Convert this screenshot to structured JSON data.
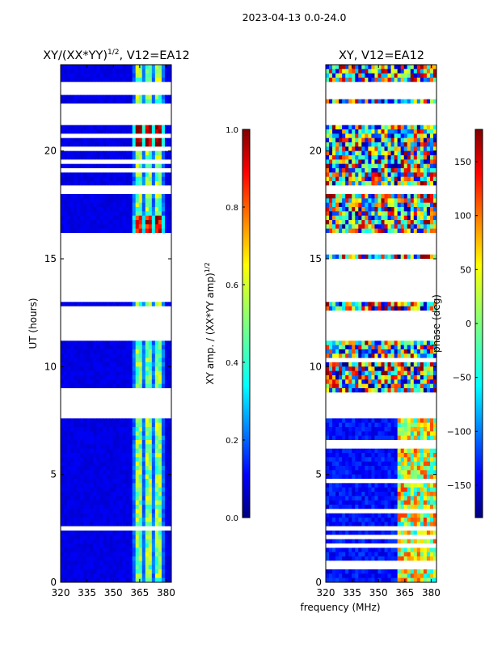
{
  "figure": {
    "suptitle": "2023-04-13 0.0-24.0",
    "shared_xlabel": "frequency (MHz)"
  },
  "chart_data": [
    {
      "type": "heatmap",
      "title": "XY/(XX*YY)^1/2, V12=EA12",
      "title_main": "XY/(XX*YY)",
      "title_sup": "1/2",
      "title_tail": ", V12=EA12",
      "xlabel": "",
      "ylabel": "UT (hours)",
      "xlim": [
        320,
        383
      ],
      "ylim": [
        0,
        24
      ],
      "xticks": [
        320,
        335,
        350,
        365,
        380
      ],
      "yticks": [
        0,
        5,
        10,
        15,
        20
      ],
      "colormap": "jet",
      "colorbar": {
        "label_main": "XY amp. / (XX*YY amp)",
        "label_sup": "1/2",
        "range": [
          0.0,
          1.0
        ],
        "ticks": [
          "0.0",
          "0.2",
          "0.4",
          "0.6",
          "0.8",
          "1.0"
        ],
        "tick_values": [
          0.0,
          0.2,
          0.4,
          0.6,
          0.8,
          1.0
        ]
      },
      "data_gaps_ut_hours": [
        [
          22.6,
          23.1
        ],
        [
          21.3,
          22.2
        ],
        [
          18.1,
          18.4
        ],
        [
          15.3,
          16.2
        ],
        [
          13.0,
          15.0
        ],
        [
          11.2,
          12.6
        ],
        [
          7.6,
          8.8
        ],
        [
          2.4,
          2.6
        ]
      ],
      "background_value": 0.08,
      "features": [
        {
          "freq_range_mhz": [
            360,
            380
          ],
          "ut_range_hours": [
            0,
            24
          ],
          "value_range": [
            0.3,
            0.55
          ],
          "description": "striped high-amplitude channels"
        },
        {
          "freq_range_mhz": [
            360,
            380
          ],
          "ut_range_hours": [
            20,
            21.3
          ],
          "value_range": [
            0.8,
            1.0
          ],
          "description": "saturated channels"
        },
        {
          "freq_range_mhz": [
            360,
            380
          ],
          "ut_range_hours": [
            15.3,
            17
          ],
          "value_range": [
            0.7,
            0.95
          ],
          "description": "saturated channels"
        }
      ]
    },
    {
      "type": "heatmap",
      "title": "XY, V12=EA12",
      "xlabel": "",
      "ylabel": "",
      "xlim": [
        320,
        383
      ],
      "ylim": [
        0,
        24
      ],
      "xticks": [
        320,
        335,
        350,
        365,
        380
      ],
      "yticks": [
        0,
        5,
        10,
        15,
        20
      ],
      "colormap": "jet",
      "colorbar": {
        "label": "phase (deg)",
        "range": [
          -180,
          180
        ],
        "ticks": [
          "150",
          "100",
          "50",
          "0",
          "−50",
          "−100",
          "−150"
        ],
        "tick_values": [
          150,
          100,
          50,
          0,
          -50,
          -100,
          -150
        ]
      },
      "data_gaps_ut_hours": [
        [
          22.6,
          23.1
        ],
        [
          21.3,
          22.2
        ],
        [
          18.1,
          18.4
        ],
        [
          15.3,
          16.2
        ],
        [
          13.0,
          15.0
        ],
        [
          11.2,
          12.6
        ],
        [
          7.6,
          8.8
        ],
        [
          2.4,
          2.6
        ]
      ],
      "features": [
        {
          "freq_range_mhz": [
            320,
            360
          ],
          "ut_range_hours": [
            0,
            7.6
          ],
          "value_range": [
            -150,
            -110
          ],
          "description": "mostly blue low-phase region"
        },
        {
          "freq_range_mhz": [
            360,
            383
          ],
          "ut_range_hours": [
            0,
            7.6
          ],
          "value_range": [
            -60,
            120
          ],
          "description": "mixed phase"
        },
        {
          "freq_range_mhz": [
            320,
            383
          ],
          "ut_range_hours": [
            8.8,
            24
          ],
          "value_range": [
            -180,
            180
          ],
          "description": "wrapped phase stripes"
        }
      ]
    }
  ]
}
